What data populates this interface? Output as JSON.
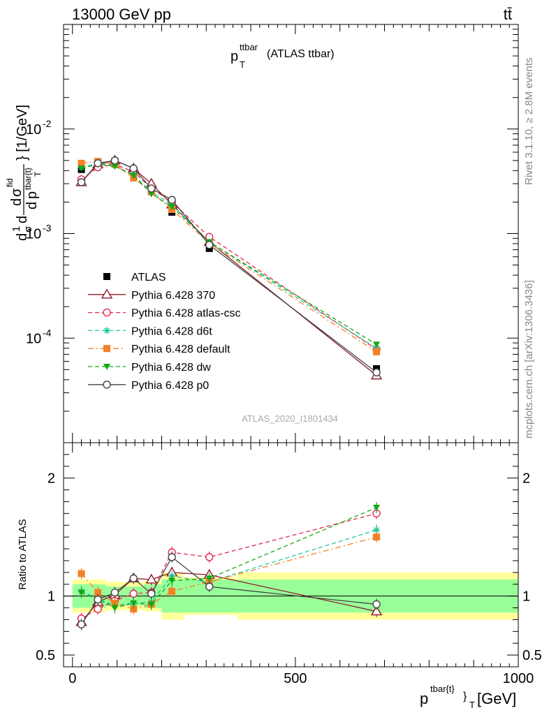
{
  "header": {
    "energy": "13000 GeV pp",
    "process": "tt̄"
  },
  "side_labels": {
    "rivet": "Rivet 3.1.10, ≥ 2.8M events",
    "mcplots": "mcplots.cern.ch [arXiv:1306.3436]"
  },
  "chart_data": [
    {
      "type": "line",
      "title_main": "p",
      "title_sup": "ttbar",
      "title_sub": "T",
      "title_note": "(ATLAS ttbar)",
      "ylabel_parts": [
        "d",
        "1",
        "σ",
        "d",
        "σ",
        "fid",
        "d",
        "p",
        "tbar{t}",
        "T",
        "} [1/GeV]"
      ],
      "watermark": "ATLAS_2020_I1801434",
      "yscale": "log",
      "ylim": [
        1e-05,
        0.1
      ],
      "xlim": [
        -20,
        1000
      ],
      "ytick_labels": [
        {
          "mant": "10",
          "exp": "-2",
          "value": 0.01
        },
        {
          "mant": "10",
          "exp": "-3",
          "value": 0.001
        },
        {
          "mant": "10",
          "exp": "-4",
          "value": 0.0001
        }
      ],
      "x": [
        20,
        57,
        95,
        137,
        177,
        223,
        307,
        682
      ],
      "series": [
        {
          "name": "ATLAS",
          "color": "#000000",
          "marker": "square-filled",
          "dash": "none",
          "values": [
            0.0041,
            0.0048,
            0.0049,
            0.0038,
            0.0026,
            0.0016,
            0.00072,
            5.1e-05
          ]
        },
        {
          "name": "Pythia 6.428 370",
          "color": "#8b1a2b",
          "marker": "triangle-open",
          "dash": "solid",
          "values": [
            0.0031,
            0.0046,
            0.005,
            0.0042,
            0.003,
            0.0019,
            0.00083,
            4.4e-05
          ]
        },
        {
          "name": "Pythia 6.428 atlas-csc",
          "color": "#e8264f",
          "marker": "circle-open",
          "dash": "dashed",
          "values": [
            0.0033,
            0.0043,
            0.0046,
            0.0039,
            0.0027,
            0.002,
            0.00093,
            7.8e-05
          ]
        },
        {
          "name": "Pythia 6.428 d6t",
          "color": "#20c8a0",
          "marker": "star",
          "dash": "dashed",
          "values": [
            0.0043,
            0.0047,
            0.0045,
            0.0036,
            0.0025,
            0.0019,
            0.00083,
            8e-05
          ]
        },
        {
          "name": "Pythia 6.428 default",
          "color": "#f58025",
          "marker": "square-filled",
          "dash": "dashdot",
          "values": [
            0.0047,
            0.0049,
            0.0046,
            0.0034,
            0.0025,
            0.0017,
            0.00081,
            7.4e-05
          ]
        },
        {
          "name": "Pythia 6.428 dw",
          "color": "#13a813",
          "marker": "triangle-down-filled",
          "dash": "dashed",
          "values": [
            0.0042,
            0.0046,
            0.0044,
            0.0036,
            0.0024,
            0.0018,
            0.00083,
            8.7e-05
          ]
        },
        {
          "name": "Pythia 6.428 p0",
          "color": "#444444",
          "marker": "circle-open",
          "dash": "solid",
          "values": [
            0.0031,
            0.0047,
            0.005,
            0.0042,
            0.0027,
            0.0021,
            0.00078,
            4.7e-05
          ]
        }
      ]
    },
    {
      "type": "line",
      "ylabel": "Ratio to ATLAS",
      "xlabel_main": "p",
      "xlabel_sup": "tbar{t}",
      "xlabel_sub": "}",
      "xlabel_sub2": "T",
      "xlabel_unit": "[GeV]",
      "ylim": [
        0.4,
        2.3
      ],
      "xlim": [
        -20,
        1000
      ],
      "xtick_labels": [
        "0",
        "500",
        "1000"
      ],
      "xticks": [
        0,
        500,
        1000
      ],
      "ytick_labels": [
        "0.5",
        "1",
        "2"
      ],
      "yticks": [
        0.5,
        1,
        2
      ],
      "bin_edges": [
        0,
        40,
        75,
        115,
        160,
        200,
        250,
        370,
        1000
      ],
      "band_inner": [
        0.1,
        0.1,
        0.08,
        0.08,
        0.1,
        0.14,
        0.14,
        0.14
      ],
      "band_outer": [
        0.14,
        0.14,
        0.12,
        0.12,
        0.13,
        0.2,
        0.16,
        0.2
      ],
      "x": [
        20,
        57,
        95,
        137,
        177,
        223,
        307,
        682
      ],
      "series": [
        {
          "name": "Pythia 6.428 370",
          "color": "#8b1a2b",
          "marker": "triangle-open",
          "dash": "solid",
          "values": [
            0.78,
            0.95,
            1.01,
            1.15,
            1.14,
            1.2,
            1.18,
            0.87
          ]
        },
        {
          "name": "Pythia 6.428 atlas-csc",
          "color": "#e8264f",
          "marker": "circle-open",
          "dash": "dashed",
          "values": [
            0.81,
            0.89,
            0.96,
            1.02,
            1.03,
            1.37,
            1.33,
            1.7
          ]
        },
        {
          "name": "Pythia 6.428 d6t",
          "color": "#20c8a0",
          "marker": "star",
          "dash": "dashed",
          "values": [
            1.04,
            0.98,
            0.92,
            0.94,
            0.95,
            1.17,
            1.12,
            1.56
          ]
        },
        {
          "name": "Pythia 6.428 default",
          "color": "#f58025",
          "marker": "square-filled",
          "dash": "dashdot",
          "values": [
            1.19,
            1.03,
            0.94,
            0.89,
            0.93,
            1.04,
            1.12,
            1.5
          ]
        },
        {
          "name": "Pythia 6.428 dw",
          "color": "#13a813",
          "marker": "triangle-down-filled",
          "dash": "dashed",
          "values": [
            1.03,
            0.97,
            0.9,
            0.94,
            0.93,
            1.13,
            1.15,
            1.75
          ]
        },
        {
          "name": "Pythia 6.428 p0",
          "color": "#444444",
          "marker": "circle-open",
          "dash": "solid",
          "values": [
            0.76,
            0.97,
            1.03,
            1.15,
            1.02,
            1.33,
            1.08,
            0.93
          ]
        }
      ]
    }
  ]
}
